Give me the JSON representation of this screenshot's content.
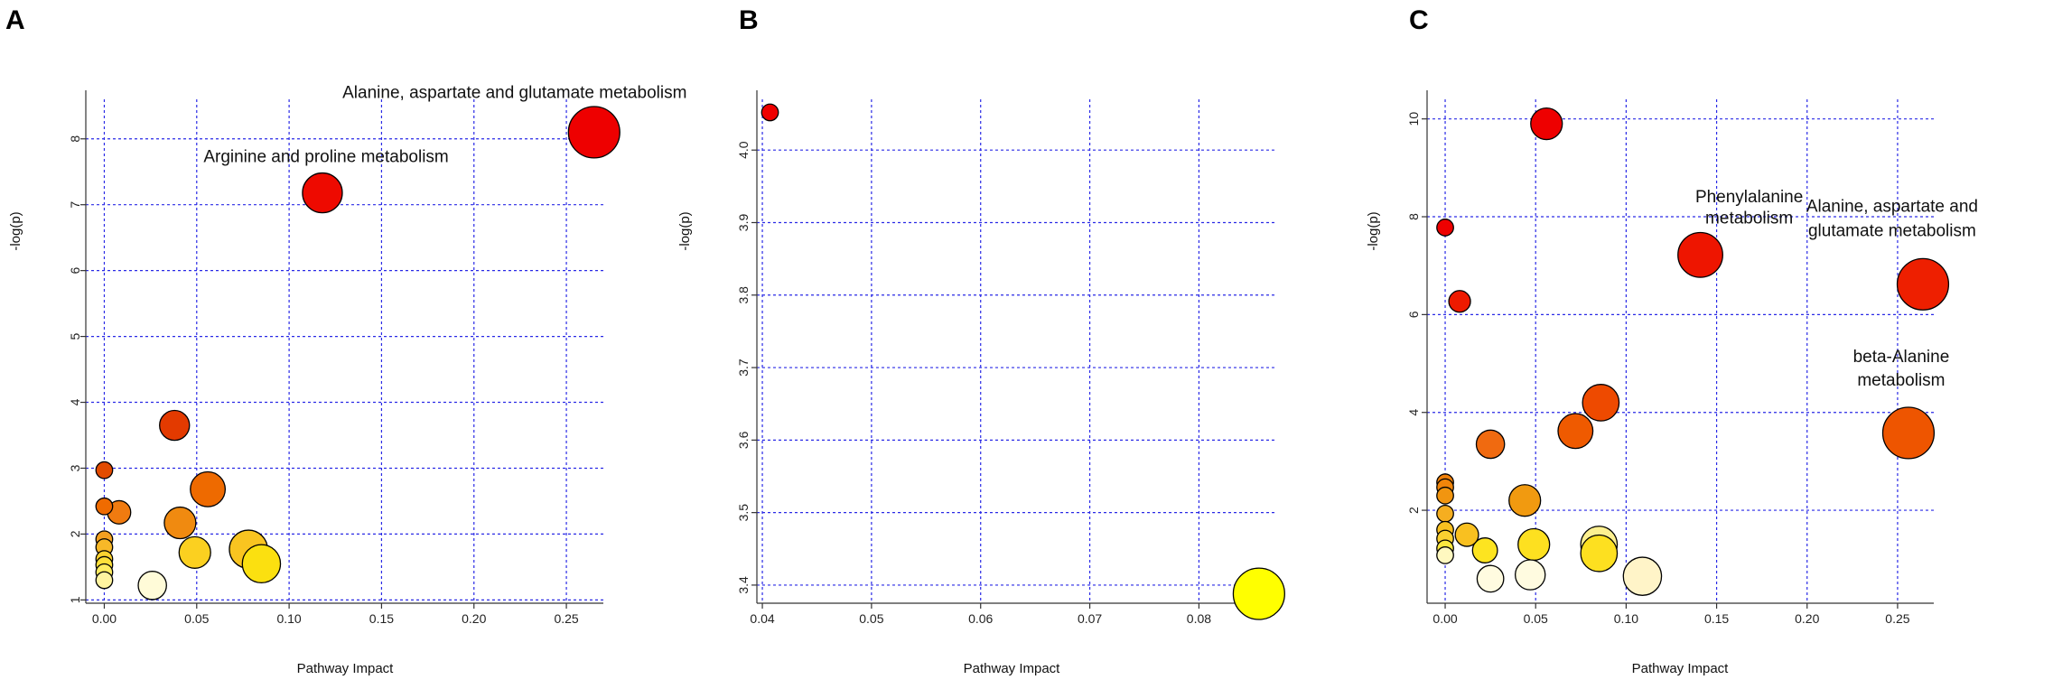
{
  "chart_data": [
    {
      "panel": "A",
      "type": "scatter",
      "xlabel": "Pathway Impact",
      "ylabel": "-log(p)",
      "xlim": [
        -0.01,
        0.27
      ],
      "ylim": [
        0.95,
        8.6
      ],
      "xticks": [
        "0.00",
        "0.05",
        "0.10",
        "0.15",
        "0.20",
        "0.25"
      ],
      "yticks": [
        "1",
        "2",
        "3",
        "4",
        "5",
        "6",
        "7",
        "8"
      ],
      "grid": true,
      "points": [
        {
          "x": 0.265,
          "y": 8.1,
          "size": 3,
          "color": "#ee0000"
        },
        {
          "x": 0.118,
          "y": 7.18,
          "size": 2.3,
          "color": "#ee0a00"
        },
        {
          "x": 0.038,
          "y": 3.65,
          "size": 1.7,
          "color": "#e33a00"
        },
        {
          "x": 0.0,
          "y": 2.97,
          "size": 0.9,
          "color": "#e24b00"
        },
        {
          "x": 0.056,
          "y": 2.68,
          "size": 2.0,
          "color": "#ee6a00"
        },
        {
          "x": 0.0,
          "y": 2.42,
          "size": 0.9,
          "color": "#ef6b00"
        },
        {
          "x": 0.008,
          "y": 2.33,
          "size": 1.3,
          "color": "#f07b10"
        },
        {
          "x": 0.041,
          "y": 2.17,
          "size": 1.8,
          "color": "#f08a10"
        },
        {
          "x": 0.0,
          "y": 1.92,
          "size": 0.9,
          "color": "#f3a020"
        },
        {
          "x": 0.0,
          "y": 1.8,
          "size": 0.9,
          "color": "#f7b828"
        },
        {
          "x": 0.0,
          "y": 1.62,
          "size": 0.9,
          "color": "#fbd230"
        },
        {
          "x": 0.0,
          "y": 1.53,
          "size": 0.9,
          "color": "#fde03a"
        },
        {
          "x": 0.0,
          "y": 1.42,
          "size": 0.9,
          "color": "#feec60"
        },
        {
          "x": 0.0,
          "y": 1.3,
          "size": 0.9,
          "color": "#fff4a0"
        },
        {
          "x": 0.049,
          "y": 1.72,
          "size": 1.8,
          "color": "#fbd020"
        },
        {
          "x": 0.078,
          "y": 1.77,
          "size": 2.2,
          "color": "#f9c420"
        },
        {
          "x": 0.085,
          "y": 1.55,
          "size": 2.2,
          "color": "#fbe010"
        },
        {
          "x": 0.026,
          "y": 1.22,
          "size": 1.6,
          "color": "#fffbd8"
        }
      ],
      "annotations": [
        {
          "text": "Alanine, aspartate and glutamate metabolism",
          "x": 0.222,
          "y": 8.62
        },
        {
          "text": "Arginine and proline metabolism",
          "x": 0.12,
          "y": 7.65
        }
      ]
    },
    {
      "panel": "B",
      "type": "scatter",
      "xlabel": "Pathway Impact",
      "ylabel": "-log(p)",
      "xlim": [
        0.0395,
        0.087
      ],
      "ylim": [
        3.375,
        4.07
      ],
      "xticks": [
        "0.04",
        "0.05",
        "0.06",
        "0.07",
        "0.08"
      ],
      "yticks": [
        "3.4",
        "3.5",
        "3.6",
        "3.7",
        "3.8",
        "3.9",
        "4.0"
      ],
      "grid": true,
      "points": [
        {
          "x": 0.0407,
          "y": 4.052,
          "size": 0.9,
          "color": "#ee0000"
        },
        {
          "x": 0.0855,
          "y": 3.388,
          "size": 3,
          "color": "#ffff00"
        }
      ],
      "annotations": []
    },
    {
      "panel": "C",
      "type": "scatter",
      "xlabel": "Pathway Impact",
      "ylabel": "-log(p)",
      "xlim": [
        -0.01,
        0.27
      ],
      "ylim": [
        0.1,
        10.4
      ],
      "xticks": [
        "0.00",
        "0.05",
        "0.10",
        "0.15",
        "0.20",
        "0.25"
      ],
      "yticks": [
        "2",
        "4",
        "6",
        "8",
        "10"
      ],
      "grid": true,
      "points": [
        {
          "x": 0.056,
          "y": 9.9,
          "size": 1.8,
          "color": "#ee0000"
        },
        {
          "x": 0.0,
          "y": 7.78,
          "size": 0.9,
          "color": "#ee0000"
        },
        {
          "x": 0.008,
          "y": 6.27,
          "size": 1.2,
          "color": "#ee1a00"
        },
        {
          "x": 0.141,
          "y": 7.22,
          "size": 2.6,
          "color": "#ee1500"
        },
        {
          "x": 0.264,
          "y": 6.62,
          "size": 3,
          "color": "#ee1f00"
        },
        {
          "x": 0.086,
          "y": 4.2,
          "size": 2.1,
          "color": "#ee4a00"
        },
        {
          "x": 0.072,
          "y": 3.62,
          "size": 2.0,
          "color": "#ef5a00"
        },
        {
          "x": 0.256,
          "y": 3.58,
          "size": 3,
          "color": "#ee5500"
        },
        {
          "x": 0.025,
          "y": 3.35,
          "size": 1.6,
          "color": "#f06a10"
        },
        {
          "x": 0.0,
          "y": 2.57,
          "size": 0.9,
          "color": "#f0800a"
        },
        {
          "x": 0.0,
          "y": 2.47,
          "size": 0.9,
          "color": "#f0850a"
        },
        {
          "x": 0.0,
          "y": 2.3,
          "size": 0.9,
          "color": "#f19510"
        },
        {
          "x": 0.044,
          "y": 2.2,
          "size": 1.8,
          "color": "#f19a10"
        },
        {
          "x": 0.0,
          "y": 1.93,
          "size": 0.9,
          "color": "#f5ae20"
        },
        {
          "x": 0.0,
          "y": 1.6,
          "size": 0.9,
          "color": "#f8c020"
        },
        {
          "x": 0.0,
          "y": 1.42,
          "size": 0.9,
          "color": "#fad030"
        },
        {
          "x": 0.012,
          "y": 1.5,
          "size": 1.3,
          "color": "#f9c020"
        },
        {
          "x": 0.0,
          "y": 1.22,
          "size": 0.9,
          "color": "#fde840"
        },
        {
          "x": 0.0,
          "y": 1.08,
          "size": 0.9,
          "color": "#fff8c0"
        },
        {
          "x": 0.022,
          "y": 1.18,
          "size": 1.4,
          "color": "#fde420"
        },
        {
          "x": 0.049,
          "y": 1.3,
          "size": 1.8,
          "color": "#fde020"
        },
        {
          "x": 0.085,
          "y": 1.3,
          "size": 2.1,
          "color": "#fdf090"
        },
        {
          "x": 0.085,
          "y": 1.12,
          "size": 2.1,
          "color": "#fde020"
        },
        {
          "x": 0.025,
          "y": 0.6,
          "size": 1.5,
          "color": "#fffbe0"
        },
        {
          "x": 0.047,
          "y": 0.68,
          "size": 1.7,
          "color": "#fffbe0"
        },
        {
          "x": 0.109,
          "y": 0.65,
          "size": 2.2,
          "color": "#fff4c8"
        }
      ],
      "annotations": [
        {
          "text": "Phenylalanine",
          "x": 0.168,
          "y": 8.3,
          "anchor": "middle"
        },
        {
          "text": "metabolism",
          "x": 0.168,
          "y": 7.86,
          "anchor": "middle"
        },
        {
          "text": "Alanine, aspartate and",
          "x": 0.247,
          "y": 8.1,
          "anchor": "middle"
        },
        {
          "text": "glutamate metabolism",
          "x": 0.247,
          "y": 7.6,
          "anchor": "middle"
        },
        {
          "text": "beta-Alanine",
          "x": 0.252,
          "y": 5.03,
          "anchor": "middle"
        },
        {
          "text": "metabolism",
          "x": 0.252,
          "y": 4.55,
          "anchor": "middle"
        }
      ]
    }
  ]
}
